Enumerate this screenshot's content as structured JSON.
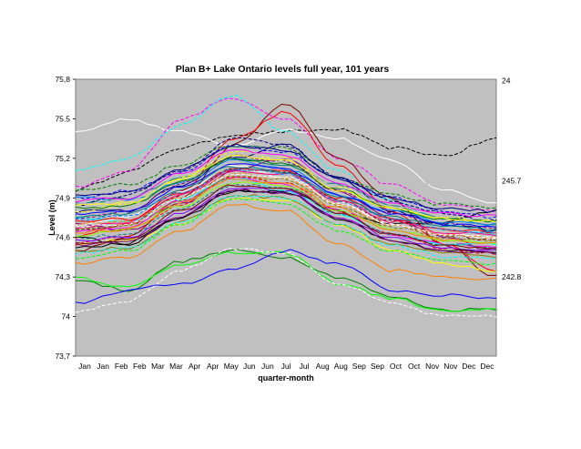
{
  "chart_data": {
    "type": "line",
    "title": "Plan B+   Lake Ontario levels   full year, 101 years",
    "xlabel": "quarter-month",
    "ylabel": "Level (m)",
    "ylim": [
      73.7,
      75.8
    ],
    "yticks": [
      75.8,
      75.5,
      75.2,
      74.9,
      74.6,
      74.3,
      74,
      73.7
    ],
    "ytick_labels": [
      "75,8",
      "75.5",
      "75,2",
      "74,9",
      "74,6",
      "74,3",
      "74",
      "73,7"
    ],
    "xtick_labels": [
      "Jan",
      "Jan",
      "Feb",
      "Feb",
      "Mar",
      "Mar",
      "Apr",
      "Apr",
      "May",
      "Jun",
      "Jun",
      "Jul",
      "Jul",
      "Aug",
      "Aug",
      "Sep",
      "Sep",
      "Oct",
      "Oct",
      "Nov",
      "Nov",
      "Dec",
      "Dec"
    ],
    "n_points": 48,
    "grid": false,
    "plot_background": "#c0c0c0",
    "right_annotations": [
      {
        "text": "24",
        "y": 75.79
      },
      {
        "text": "245.7",
        "y": 75.03
      },
      {
        "text": "242.8",
        "y": 74.3
      }
    ],
    "series_count": 101,
    "series": [
      {
        "color": "#000000",
        "dash": true,
        "values": [
          74.96,
          75.1,
          75.28,
          75.38,
          75.4,
          75.42,
          75.28,
          75.22,
          75.35
        ]
      },
      {
        "color": "#ffffff",
        "dash": false,
        "values": [
          75.4,
          75.5,
          75.4,
          75.3,
          75.42,
          75.35,
          75.18,
          74.96,
          74.86
        ]
      },
      {
        "color": "#c0c0c0",
        "dash": true,
        "values": [
          75.3,
          75.4,
          75.45,
          75.6,
          75.5,
          75.3,
          75.1,
          74.98,
          74.9
        ]
      },
      {
        "color": "#ff00ff",
        "dash": true,
        "values": [
          74.98,
          75.1,
          75.5,
          75.66,
          75.5,
          75.2,
          75.0,
          74.85,
          74.8
        ]
      },
      {
        "color": "#00ffff",
        "dash": true,
        "values": [
          75.1,
          75.2,
          75.45,
          75.68,
          75.4,
          75.1,
          74.88,
          74.7,
          74.62
        ]
      },
      {
        "color": "#008000",
        "dash": false,
        "values": [
          74.28,
          74.2,
          74.42,
          74.5,
          74.45,
          74.3,
          74.15,
          74.05,
          74.06
        ]
      },
      {
        "color": "#00ff00",
        "dash": false,
        "values": [
          74.3,
          74.22,
          74.4,
          74.48,
          74.48,
          74.25,
          74.14,
          74.04,
          74.05
        ]
      },
      {
        "color": "#0000ff",
        "dash": false,
        "values": [
          74.1,
          74.2,
          74.25,
          74.36,
          74.5,
          74.4,
          74.2,
          74.16,
          74.14
        ]
      },
      {
        "color": "#ffffff",
        "dash": true,
        "values": [
          74.04,
          74.12,
          74.35,
          74.52,
          74.48,
          74.25,
          74.1,
          74.0,
          74.0
        ]
      },
      {
        "color": "#800000",
        "dash": false,
        "values": [
          74.5,
          74.6,
          74.9,
          75.3,
          75.62,
          75.2,
          74.9,
          74.55,
          74.3
        ]
      },
      {
        "color": "#ff0000",
        "dash": false,
        "values": [
          74.6,
          74.7,
          74.95,
          75.35,
          75.55,
          75.15,
          74.8,
          74.55,
          74.35
        ]
      },
      {
        "color": "#000080",
        "dash": false,
        "values": [
          74.8,
          74.8,
          75.0,
          75.2,
          75.3,
          75.05,
          74.8,
          74.7,
          74.65
        ]
      },
      {
        "color": "#800080",
        "dash": false,
        "values": [
          74.7,
          74.65,
          74.85,
          75.1,
          75.2,
          74.95,
          74.75,
          74.6,
          74.5
        ]
      },
      {
        "color": "#008080",
        "dash": false,
        "values": [
          74.85,
          74.9,
          75.05,
          75.2,
          75.15,
          75.0,
          74.85,
          74.75,
          74.7
        ]
      },
      {
        "color": "#ffff00",
        "dash": false,
        "values": [
          74.55,
          74.58,
          74.7,
          74.9,
          74.88,
          74.7,
          74.5,
          74.4,
          74.35
        ]
      },
      {
        "color": "#000000",
        "dash": false,
        "values": [
          74.6,
          74.55,
          74.75,
          74.95,
          74.95,
          74.8,
          74.7,
          74.72,
          74.8
        ]
      },
      {
        "color": "#ff8000",
        "dash": false,
        "values": [
          74.4,
          74.45,
          74.65,
          74.85,
          74.8,
          74.55,
          74.35,
          74.3,
          74.28
        ]
      },
      {
        "color": "#0000ff",
        "dash": true,
        "values": [
          74.9,
          74.95,
          75.1,
          75.3,
          75.25,
          75.05,
          74.9,
          74.8,
          74.75
        ]
      },
      {
        "color": "#ff00ff",
        "dash": false,
        "values": [
          74.65,
          74.68,
          74.88,
          75.05,
          75.0,
          74.8,
          74.62,
          74.55,
          74.52
        ]
      },
      {
        "color": "#00ffff",
        "dash": false,
        "values": [
          74.75,
          74.72,
          74.9,
          75.05,
          74.95,
          74.78,
          74.62,
          74.55,
          74.55
        ]
      },
      {
        "color": "#808000",
        "dash": false,
        "values": [
          74.5,
          74.52,
          74.72,
          74.92,
          74.9,
          74.7,
          74.55,
          74.48,
          74.45
        ]
      },
      {
        "color": "#008000",
        "dash": true,
        "values": [
          74.95,
          75.0,
          75.15,
          75.3,
          75.28,
          75.05,
          74.92,
          74.85,
          74.82
        ]
      },
      {
        "color": "#ff0000",
        "dash": true,
        "values": [
          74.55,
          74.62,
          74.85,
          75.05,
          75.02,
          74.8,
          74.62,
          74.52,
          74.48
        ]
      },
      {
        "color": "#ffffff",
        "dash": false,
        "values": [
          74.7,
          74.75,
          74.95,
          75.15,
          75.05,
          74.85,
          74.7,
          74.62,
          74.6
        ]
      },
      {
        "color": "#000080",
        "dash": true,
        "values": [
          74.85,
          74.92,
          75.1,
          75.35,
          75.3,
          75.05,
          74.88,
          74.78,
          74.72
        ]
      },
      {
        "color": "#800000",
        "dash": true,
        "values": [
          74.65,
          74.7,
          74.92,
          75.12,
          75.1,
          74.88,
          74.72,
          74.62,
          74.58
        ]
      },
      {
        "color": "#00ff00",
        "dash": true,
        "values": [
          74.45,
          74.5,
          74.7,
          74.9,
          74.85,
          74.65,
          74.5,
          74.42,
          74.4
        ]
      },
      {
        "color": "#800080",
        "dash": true,
        "values": [
          74.75,
          74.8,
          75.0,
          75.22,
          75.18,
          74.95,
          74.78,
          74.7,
          74.68
        ]
      },
      {
        "color": "#008080",
        "dash": true,
        "values": [
          74.6,
          74.62,
          74.82,
          75.0,
          74.98,
          74.78,
          74.62,
          74.55,
          74.52
        ]
      },
      {
        "color": "#ffff00",
        "dash": true,
        "values": [
          74.8,
          74.85,
          75.05,
          75.25,
          75.2,
          74.98,
          74.82,
          74.75,
          74.72
        ]
      },
      {
        "color": "#ff8000",
        "dash": true,
        "values": [
          74.7,
          74.72,
          74.9,
          75.08,
          75.05,
          74.85,
          74.7,
          74.62,
          74.6
        ]
      },
      {
        "color": "#0080ff",
        "dash": false,
        "values": [
          74.9,
          74.88,
          75.02,
          75.18,
          75.12,
          74.92,
          74.8,
          74.72,
          74.7
        ]
      },
      {
        "color": "#8000ff",
        "dash": false,
        "values": [
          74.58,
          74.6,
          74.78,
          74.98,
          74.95,
          74.75,
          74.6,
          74.52,
          74.5
        ]
      },
      {
        "color": "#ff0080",
        "dash": false,
        "values": [
          74.68,
          74.72,
          74.92,
          75.1,
          75.08,
          74.88,
          74.72,
          74.64,
          74.62
        ]
      },
      {
        "color": "#80ff00",
        "dash": false,
        "values": [
          74.62,
          74.66,
          74.84,
          75.02,
          75.0,
          74.8,
          74.66,
          74.58,
          74.56
        ]
      },
      {
        "color": "#0000ff",
        "dash": false,
        "values": [
          74.78,
          74.8,
          74.98,
          75.16,
          75.12,
          74.92,
          74.78,
          74.7,
          74.68
        ]
      },
      {
        "color": "#000000",
        "dash": false,
        "values": [
          74.52,
          74.56,
          74.76,
          74.96,
          74.94,
          74.74,
          74.58,
          74.5,
          74.48
        ]
      },
      {
        "color": "#ff00ff",
        "dash": false,
        "values": [
          74.88,
          74.9,
          75.08,
          75.26,
          75.22,
          75.0,
          74.86,
          74.78,
          74.76
        ]
      },
      {
        "color": "#00ffff",
        "dash": true,
        "values": [
          74.48,
          74.52,
          74.72,
          74.92,
          74.9,
          74.7,
          74.54,
          74.46,
          74.44
        ]
      },
      {
        "color": "#008000",
        "dash": false,
        "values": [
          74.82,
          74.84,
          75.02,
          75.2,
          75.16,
          74.96,
          74.82,
          74.74,
          74.72
        ]
      },
      {
        "color": "#ff0000",
        "dash": false,
        "values": [
          74.72,
          74.74,
          74.94,
          75.12,
          75.1,
          74.9,
          74.74,
          74.66,
          74.64
        ]
      },
      {
        "color": "#800000",
        "dash": false,
        "values": [
          74.56,
          74.58,
          74.8,
          75.0,
          74.98,
          74.78,
          74.62,
          74.54,
          74.52
        ]
      },
      {
        "color": "#000080",
        "dash": false,
        "values": [
          74.92,
          74.94,
          75.12,
          75.3,
          75.26,
          75.04,
          74.9,
          74.82,
          74.8
        ]
      },
      {
        "color": "#808000",
        "dash": true,
        "values": [
          74.66,
          74.68,
          74.88,
          75.06,
          75.04,
          74.84,
          74.68,
          74.6,
          74.58
        ]
      },
      {
        "color": "#008080",
        "dash": false,
        "values": [
          74.76,
          74.78,
          74.96,
          75.14,
          75.1,
          74.9,
          74.76,
          74.68,
          74.66
        ]
      },
      {
        "color": "#ffff00",
        "dash": false,
        "values": [
          74.84,
          74.86,
          75.04,
          75.22,
          75.18,
          74.96,
          74.82,
          74.74,
          74.72
        ]
      },
      {
        "color": "#ff8000",
        "dash": false,
        "values": [
          74.64,
          74.66,
          74.86,
          75.04,
          75.02,
          74.82,
          74.66,
          74.58,
          74.56
        ]
      },
      {
        "color": "#0080ff",
        "dash": true,
        "values": [
          74.74,
          74.76,
          74.94,
          75.12,
          75.08,
          74.88,
          74.74,
          74.66,
          74.64
        ]
      },
      {
        "color": "#800080",
        "dash": false,
        "values": [
          74.54,
          74.56,
          74.76,
          74.96,
          74.94,
          74.74,
          74.58,
          74.5,
          74.48
        ]
      },
      {
        "color": "#c0c0c0",
        "dash": false,
        "values": [
          74.86,
          74.88,
          75.06,
          75.24,
          75.2,
          74.98,
          74.84,
          74.76,
          74.74
        ]
      },
      {
        "color": "#ffffff",
        "dash": true,
        "values": [
          74.68,
          74.7,
          74.9,
          75.08,
          75.06,
          74.86,
          74.7,
          74.62,
          74.6
        ]
      }
    ]
  }
}
